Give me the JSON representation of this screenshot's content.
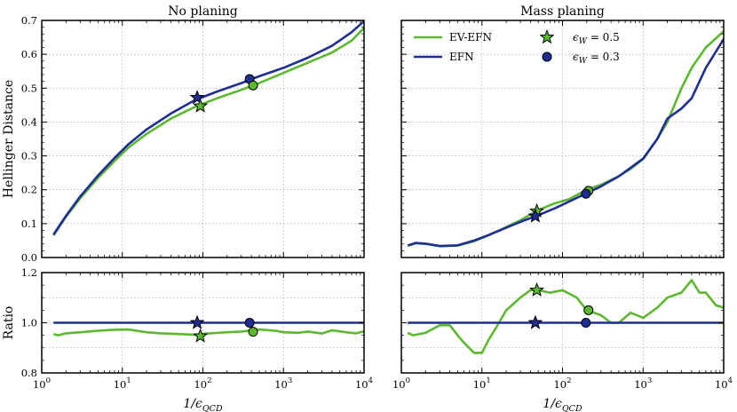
{
  "chart_data": [
    {
      "panel": "top-left",
      "type": "line",
      "title": "No planing",
      "xlabel": "",
      "ylabel": "Hellinger Distance",
      "xscale": "log",
      "xlim": [
        1,
        10000
      ],
      "ylim": [
        0,
        0.7
      ],
      "yticks": [
        "0.0",
        "0.1",
        "0.2",
        "0.3",
        "0.4",
        "0.5",
        "0.6",
        "0.7"
      ],
      "grid": true,
      "series": [
        {
          "name": "EV-EFN",
          "color": "#5cb82e",
          "x": [
            1.4,
            2,
            3,
            5,
            8,
            12,
            20,
            40,
            80,
            150,
            300,
            500,
            1000,
            2000,
            4000,
            7000,
            10000
          ],
          "y": [
            0.065,
            0.12,
            0.175,
            0.235,
            0.285,
            0.325,
            0.365,
            0.41,
            0.445,
            0.47,
            0.495,
            0.515,
            0.545,
            0.575,
            0.605,
            0.64,
            0.678
          ]
        },
        {
          "name": "EFN",
          "color": "#1f2e94",
          "x": [
            1.4,
            2,
            3,
            5,
            8,
            12,
            20,
            40,
            80,
            150,
            300,
            500,
            1000,
            2000,
            4000,
            7000,
            10000
          ],
          "y": [
            0.068,
            0.123,
            0.18,
            0.242,
            0.294,
            0.335,
            0.378,
            0.425,
            0.465,
            0.49,
            0.515,
            0.535,
            0.56,
            0.59,
            0.625,
            0.665,
            0.698
          ]
        }
      ],
      "markers": [
        {
          "series": "EFN",
          "shape": "star",
          "x": 85,
          "y": 0.472
        },
        {
          "series": "EV-EFN",
          "shape": "star",
          "x": 93,
          "y": 0.447
        },
        {
          "series": "EFN",
          "shape": "circle",
          "x": 380,
          "y": 0.527
        },
        {
          "series": "EV-EFN",
          "shape": "circle",
          "x": 420,
          "y": 0.508
        }
      ]
    },
    {
      "panel": "top-right",
      "type": "line",
      "title": "Mass planing",
      "xlabel": "",
      "ylabel": "",
      "xscale": "log",
      "xlim": [
        1,
        10000
      ],
      "ylim": [
        0,
        0.7
      ],
      "grid": true,
      "legend": {
        "placement": "top-left",
        "entries": [
          {
            "label": "EV-EFN",
            "kind": "line",
            "color": "#5cb82e"
          },
          {
            "label": "EFN",
            "kind": "line",
            "color": "#1f2e94"
          },
          {
            "label": "ϵ_W = 0.5",
            "kind": "star",
            "color": "#5cb82e"
          },
          {
            "label": "ϵ_W = 0.3",
            "kind": "circle",
            "color": "#1f2e94"
          }
        ]
      },
      "series": [
        {
          "name": "EV-EFN",
          "color": "#5cb82e",
          "x": [
            1.2,
            1.5,
            2,
            3,
            5,
            8,
            12,
            20,
            30,
            50,
            80,
            120,
            200,
            300,
            500,
            700,
            1000,
            1500,
            2000,
            3000,
            4000,
            6000,
            10000
          ],
          "y": [
            0.035,
            0.042,
            0.04,
            0.033,
            0.035,
            0.048,
            0.065,
            0.09,
            0.11,
            0.14,
            0.16,
            0.172,
            0.2,
            0.215,
            0.24,
            0.262,
            0.29,
            0.35,
            0.4,
            0.5,
            0.56,
            0.62,
            0.668
          ]
        },
        {
          "name": "EFN",
          "color": "#1f2e94",
          "x": [
            1.2,
            1.5,
            2,
            3,
            5,
            8,
            12,
            20,
            30,
            50,
            80,
            120,
            200,
            300,
            500,
            700,
            1000,
            1500,
            2000,
            3000,
            4000,
            6000,
            10000
          ],
          "y": [
            0.035,
            0.043,
            0.041,
            0.034,
            0.036,
            0.05,
            0.066,
            0.088,
            0.105,
            0.125,
            0.145,
            0.165,
            0.19,
            0.21,
            0.24,
            0.265,
            0.292,
            0.35,
            0.41,
            0.44,
            0.47,
            0.56,
            0.645
          ]
        }
      ],
      "markers": [
        {
          "series": "EV-EFN",
          "shape": "star",
          "x": 48,
          "y": 0.137
        },
        {
          "series": "EFN",
          "shape": "star",
          "x": 46,
          "y": 0.122
        },
        {
          "series": "EV-EFN",
          "shape": "circle",
          "x": 210,
          "y": 0.197
        },
        {
          "series": "EFN",
          "shape": "circle",
          "x": 195,
          "y": 0.188
        }
      ]
    },
    {
      "panel": "bottom-left",
      "type": "line",
      "title": "",
      "xlabel": "1/ϵ_QCD",
      "ylabel": "Ratio",
      "xscale": "log",
      "xlim": [
        1,
        10000
      ],
      "ylim": [
        0.8,
        1.2
      ],
      "yticks": [
        "0.8",
        "1.0",
        "1.2"
      ],
      "xticks": [
        "10^0",
        "10^1",
        "10^2",
        "10^3",
        "10^4"
      ],
      "grid": true,
      "series": [
        {
          "name": "EV-EFN",
          "color": "#5cb82e",
          "x": [
            1.4,
            1.6,
            2,
            3,
            5,
            8,
            12,
            20,
            30,
            50,
            80,
            120,
            200,
            300,
            500,
            800,
            1000,
            1500,
            2000,
            3000,
            4000,
            6000,
            8000,
            10000
          ],
          "y": [
            0.955,
            0.95,
            0.958,
            0.962,
            0.968,
            0.972,
            0.973,
            0.962,
            0.958,
            0.955,
            0.952,
            0.958,
            0.962,
            0.965,
            0.973,
            0.968,
            0.962,
            0.96,
            0.965,
            0.957,
            0.97,
            0.962,
            0.958,
            0.966
          ]
        },
        {
          "name": "EFN",
          "color": "#1f2e94",
          "x": [
            1.4,
            10000
          ],
          "y": [
            1.0,
            1.0
          ]
        }
      ],
      "markers": [
        {
          "series": "EFN",
          "shape": "star",
          "x": 85,
          "y": 1.0
        },
        {
          "series": "EV-EFN",
          "shape": "star",
          "x": 93,
          "y": 0.947
        },
        {
          "series": "EFN",
          "shape": "circle",
          "x": 380,
          "y": 1.0
        },
        {
          "series": "EV-EFN",
          "shape": "circle",
          "x": 420,
          "y": 0.964
        }
      ]
    },
    {
      "panel": "bottom-right",
      "type": "line",
      "title": "",
      "xlabel": "1/ϵ_QCD",
      "ylabel": "",
      "xscale": "log",
      "xlim": [
        1,
        10000
      ],
      "ylim": [
        0.8,
        1.2
      ],
      "xticks": [
        "10^0",
        "10^1",
        "10^2",
        "10^3",
        "10^4"
      ],
      "grid": true,
      "series": [
        {
          "name": "EV-EFN",
          "color": "#5cb82e",
          "x": [
            1.2,
            1.4,
            2,
            3,
            4,
            5,
            6,
            8,
            10,
            12,
            15,
            20,
            30,
            40,
            50,
            70,
            100,
            150,
            200,
            300,
            400,
            500,
            700,
            1000,
            1500,
            2000,
            3000,
            4000,
            5000,
            6000,
            8000,
            10000
          ],
          "y": [
            0.96,
            0.95,
            0.96,
            0.99,
            0.99,
            0.95,
            0.92,
            0.88,
            0.88,
            0.93,
            0.98,
            1.05,
            1.1,
            1.13,
            1.13,
            1.12,
            1.13,
            1.1,
            1.05,
            1.03,
            1.0,
            1.0,
            1.04,
            1.02,
            1.06,
            1.1,
            1.12,
            1.17,
            1.12,
            1.12,
            1.07,
            1.06
          ]
        },
        {
          "name": "EFN",
          "color": "#1f2e94",
          "x": [
            1.2,
            10000
          ],
          "y": [
            1.0,
            1.0
          ]
        }
      ],
      "markers": [
        {
          "series": "EV-EFN",
          "shape": "star",
          "x": 48,
          "y": 1.13
        },
        {
          "series": "EFN",
          "shape": "star",
          "x": 46,
          "y": 1.0
        },
        {
          "series": "EV-EFN",
          "shape": "circle",
          "x": 210,
          "y": 1.05
        },
        {
          "series": "EFN",
          "shape": "circle",
          "x": 195,
          "y": 1.0
        }
      ]
    }
  ],
  "labels": {
    "xtick_base": "10",
    "xtick_exps": [
      "0",
      "1",
      "2",
      "3",
      "4"
    ],
    "top_yticks": [
      "0.0",
      "0.1",
      "0.2",
      "0.3",
      "0.4",
      "0.5",
      "0.6",
      "0.7"
    ],
    "bottom_yticks": [
      "0.8",
      "1.0",
      "1.2"
    ],
    "xlabel_main": "1/ϵ",
    "xlabel_sub": "QCD",
    "legend_eps_main": "ϵ",
    "legend_eps_sub": "W",
    "legend_eps_05": " = 0.5",
    "legend_eps_03": " = 0.3"
  }
}
